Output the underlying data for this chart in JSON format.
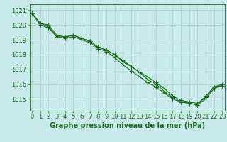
{
  "title": "Graphe pression niveau de la mer (hPa)",
  "xlabel_ticks": [
    0,
    1,
    2,
    3,
    4,
    5,
    6,
    7,
    8,
    9,
    10,
    11,
    12,
    13,
    14,
    15,
    16,
    17,
    18,
    19,
    20,
    21,
    22,
    23
  ],
  "ylim": [
    1014.2,
    1021.4
  ],
  "xlim": [
    -0.3,
    23.3
  ],
  "yticks": [
    1015,
    1016,
    1017,
    1018,
    1019,
    1020,
    1021
  ],
  "bg_color": "#c8eaea",
  "line_color": "#1a6b1a",
  "grid_color": "#b0c8c8",
  "series": [
    [
      1020.8,
      1020.1,
      1020.0,
      1019.3,
      1019.2,
      1019.3,
      1019.1,
      1018.9,
      1018.5,
      1018.3,
      1018.0,
      1017.5,
      1017.2,
      1016.8,
      1016.3,
      1016.0,
      1015.5,
      1015.1,
      1014.8,
      1014.7,
      1014.6,
      1015.2,
      1015.8,
      1015.9
    ],
    [
      1020.8,
      1020.1,
      1019.9,
      1019.2,
      1019.1,
      1019.2,
      1019.0,
      1018.8,
      1018.4,
      1018.2,
      1017.8,
      1017.3,
      1016.9,
      1016.5,
      1016.1,
      1015.8,
      1015.4,
      1015.0,
      1014.8,
      1014.7,
      1014.6,
      1015.0,
      1015.7,
      1015.9
    ],
    [
      1020.8,
      1020.0,
      1019.8,
      1019.2,
      1019.2,
      1019.3,
      1019.1,
      1018.9,
      1018.5,
      1018.3,
      1018.0,
      1017.6,
      1017.2,
      1016.8,
      1016.5,
      1016.1,
      1015.7,
      1015.2,
      1014.9,
      1014.8,
      1014.7,
      1015.1,
      1015.8,
      1016.0
    ]
  ],
  "marker": "+",
  "markersize": 4,
  "linewidth": 0.8,
  "fontsize_title": 7,
  "fontsize_ticks": 6
}
